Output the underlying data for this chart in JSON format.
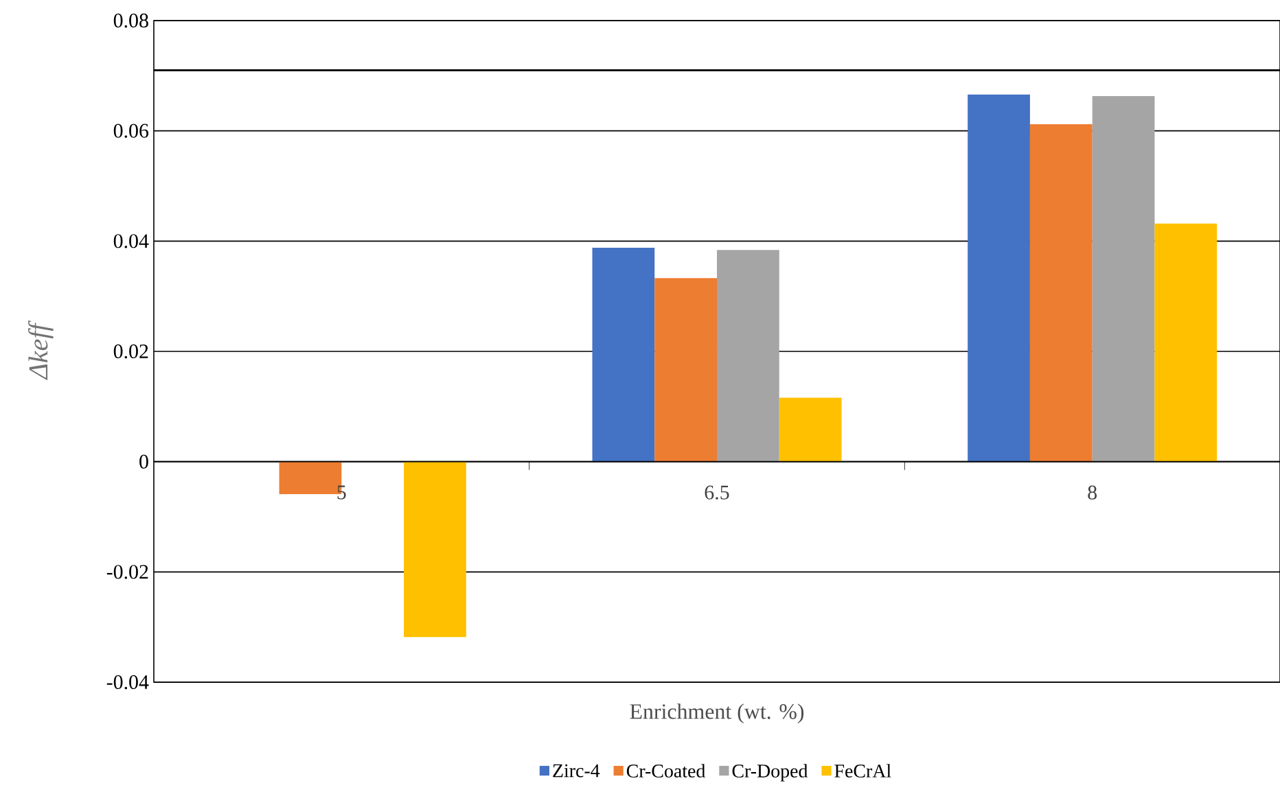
{
  "chart_data": {
    "type": "bar",
    "xlabel": "Enrichment (wt. %)",
    "ylabel": "Δkeff",
    "categories": [
      "5",
      "6.5",
      "8"
    ],
    "series": [
      {
        "name": "Zirc-4",
        "color": "#4472c4",
        "values": [
          0,
          0.0388,
          0.0666
        ]
      },
      {
        "name": "Cr-Coated",
        "color": "#ed7d31",
        "values": [
          -0.0059,
          0.0333,
          0.0612
        ]
      },
      {
        "name": "Cr-Doped",
        "color": "#a5a5a5",
        "values": [
          0,
          0.0384,
          0.0663
        ]
      },
      {
        "name": "FeCrAl",
        "color": "#ffc000",
        "values": [
          -0.0318,
          0.0116,
          0.0432
        ]
      }
    ],
    "ylim": [
      -0.04,
      0.08
    ],
    "yticks": [
      -0.04,
      -0.02,
      0,
      0.02,
      0.04,
      0.06,
      0.08
    ],
    "ref_lines": [
      {
        "axis": "y",
        "value": 0.071,
        "color": "#000000"
      }
    ],
    "grid": "y",
    "legend": "bottom"
  }
}
